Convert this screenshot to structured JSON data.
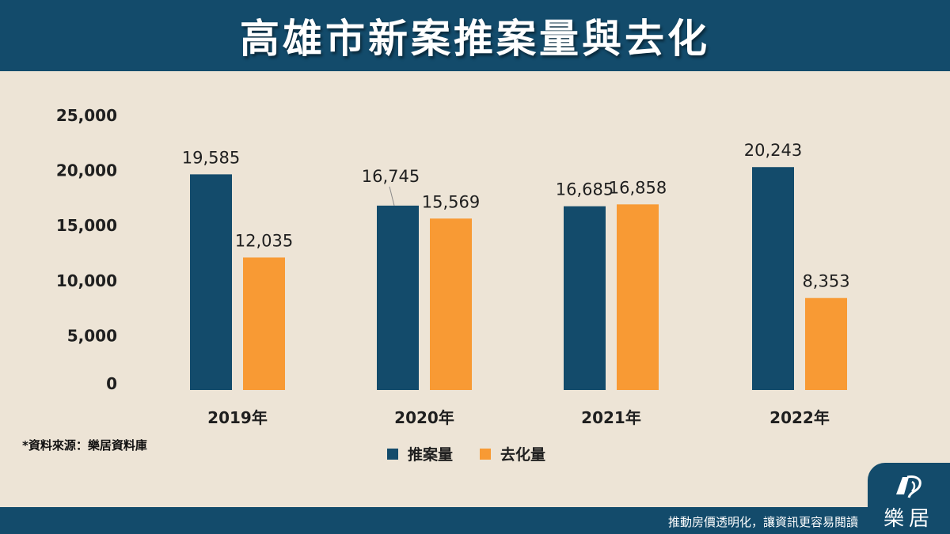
{
  "header": {
    "title": "高雄市新案推案量與去化"
  },
  "source_note": "*資料來源：樂居資料庫",
  "footer": {
    "slogan": "推動房價透明化，讓資訊更容易閱讀"
  },
  "logo": {
    "text": "樂居",
    "icon": "leju-logo-icon"
  },
  "colors": {
    "series1": "#134b6b",
    "series2": "#f89a34",
    "header_bg": "#134b6b",
    "background": "#ede4d6"
  },
  "chart_data": {
    "type": "bar",
    "title": "高雄市新案推案量與去化",
    "categories": [
      "2019年",
      "2020年",
      "2021年",
      "2022年"
    ],
    "series": [
      {
        "name": "推案量",
        "values": [
          19585,
          16745,
          16685,
          20243
        ],
        "labels": [
          "19,585",
          "16,745",
          "16,685",
          "20,243"
        ]
      },
      {
        "name": "去化量",
        "values": [
          12035,
          15569,
          16858,
          8353
        ],
        "labels": [
          "12,035",
          "15,569",
          "16,858",
          "8,353"
        ]
      }
    ],
    "ylim": [
      0,
      25000
    ],
    "yticks": [
      0,
      5000,
      10000,
      15000,
      20000,
      25000
    ],
    "ytick_labels": [
      "0",
      "5,000",
      "10,000",
      "15,000",
      "20,000",
      "25,000"
    ],
    "xlabel": "",
    "ylabel": "",
    "grid": false,
    "legend_position": "bottom"
  }
}
